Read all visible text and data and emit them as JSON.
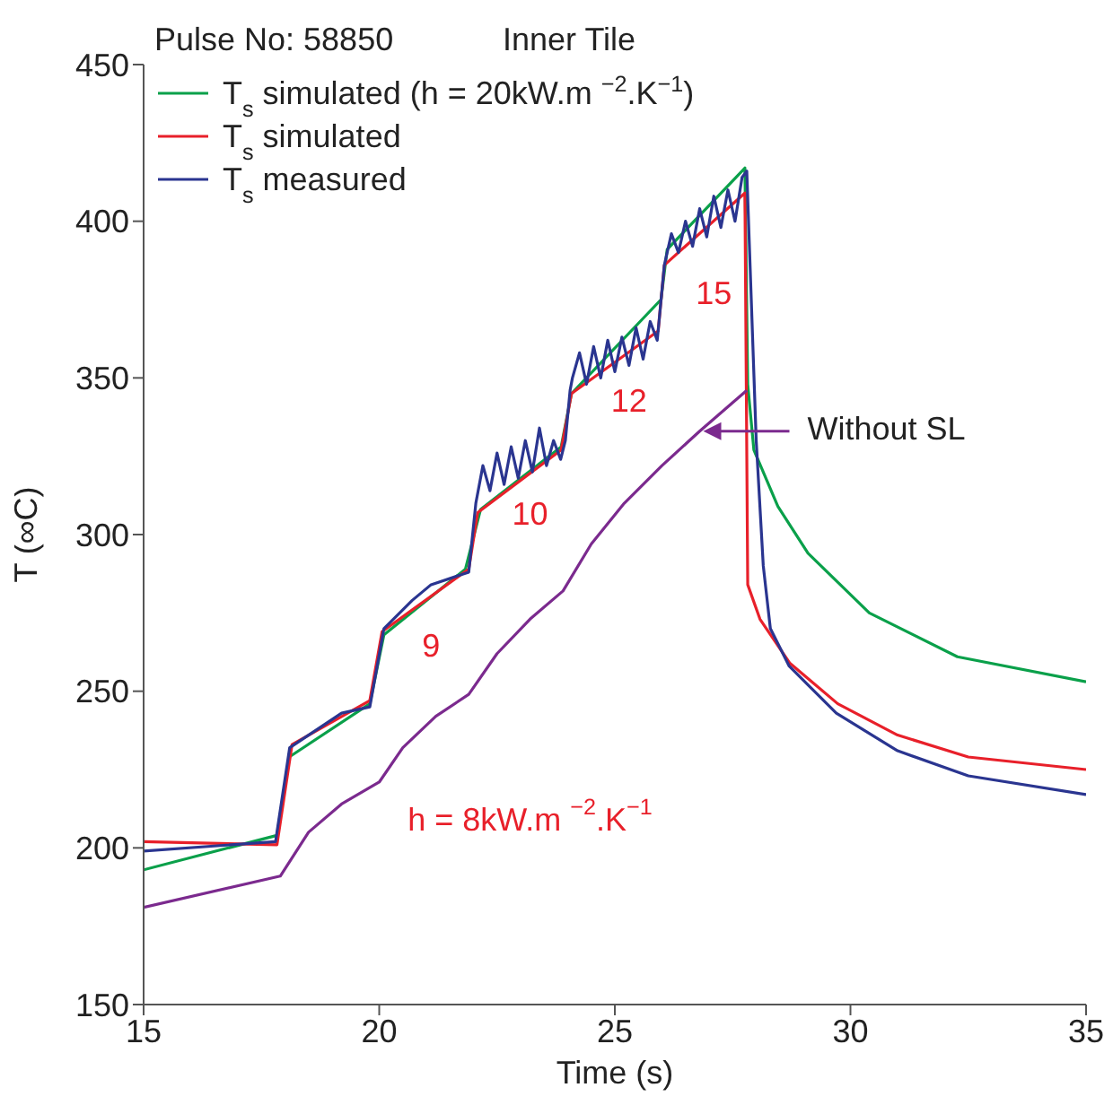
{
  "chart_data": {
    "type": "line",
    "title": "Pulse No: 58850",
    "subtitle": "Inner Tile",
    "xlabel": "Time (s)",
    "ylabel": "T (∞C)",
    "xlim": [
      15,
      35
    ],
    "xticks": [
      15,
      20,
      25,
      30,
      35
    ],
    "ylim": [
      150,
      450
    ],
    "yticks": [
      150,
      200,
      250,
      300,
      350,
      400,
      450
    ],
    "grid": false,
    "legend": "top left",
    "marker": "none",
    "line_style": "solid",
    "series": [
      {
        "name": "T$_{s}$ simulated (h = 20kW.m $^{−2}$.K$^{−1}$)",
        "color": "#0aa04a",
        "x": [
          15,
          17.83,
          18.09,
          19.8,
          20.1,
          21.83,
          22.15,
          23.86,
          24.08,
          25.98,
          26.11,
          27.76,
          27.82,
          27.95,
          28.46,
          29.1,
          30.4,
          32.27,
          35
        ],
        "values": [
          193,
          204,
          229,
          246,
          268,
          289,
          308,
          328,
          345,
          375,
          391,
          417,
          348,
          327,
          309,
          294,
          275,
          261,
          253
        ]
      },
      {
        "name": "T$_{s}$ simulated",
        "color": "#e8202a",
        "x": [
          15,
          17.83,
          18.15,
          19.8,
          20.06,
          21.9,
          22.09,
          23.86,
          24.08,
          25.92,
          26.05,
          27.76,
          27.82,
          28.08,
          28.71,
          29.73,
          31,
          32.5,
          35
        ],
        "values": [
          202,
          201,
          233,
          247,
          269,
          289,
          307,
          327,
          345,
          365,
          386,
          409,
          284,
          273,
          259,
          246,
          236,
          229,
          225
        ]
      },
      {
        "name": "T$_{s}$ measured",
        "color": "#2a3590",
        "x": [
          15,
          17.8,
          18.1,
          19.2,
          19.8,
          20.1,
          20.7,
          21.1,
          21.9,
          22.05,
          22.2,
          22.35,
          22.5,
          22.65,
          22.8,
          22.95,
          23.1,
          23.25,
          23.4,
          23.55,
          23.7,
          23.85,
          23.95,
          24.05,
          24.1,
          24.25,
          24.4,
          24.55,
          24.7,
          24.85,
          25,
          25.15,
          25.3,
          25.45,
          25.6,
          25.75,
          25.9,
          26.05,
          26.2,
          26.35,
          26.5,
          26.65,
          26.8,
          26.95,
          27.1,
          27.25,
          27.4,
          27.55,
          27.7,
          27.8,
          28,
          28.15,
          28.3,
          28.7,
          29.7,
          31,
          32.5,
          35
        ],
        "values": [
          199,
          202,
          232,
          243,
          245,
          270,
          279,
          284,
          288,
          310,
          322,
          314,
          326,
          316,
          328,
          318,
          330,
          320,
          334,
          322,
          330,
          324,
          330,
          346,
          350,
          358,
          348,
          360,
          350,
          362,
          352,
          363,
          354,
          366,
          356,
          368,
          362,
          386,
          396,
          390,
          400,
          392,
          404,
          395,
          408,
          398,
          410,
          400,
          414,
          416,
          330,
          290,
          270,
          258,
          243,
          231,
          223,
          217
        ]
      },
      {
        "name": "Without SL",
        "color": "#7b2a8e",
        "x": [
          15,
          17.9,
          18.5,
          19.2,
          20,
          20.5,
          21.2,
          21.9,
          22.5,
          23.2,
          23.9,
          24.5,
          25.2,
          26,
          26.8,
          27.8
        ],
        "values": [
          181,
          191,
          205,
          214,
          221,
          232,
          242,
          249,
          262,
          273,
          282,
          297,
          310,
          322,
          333,
          346
        ]
      }
    ],
    "annotations": [
      "9",
      "10",
      "12",
      "15",
      "h = 8kW.m $^{−2}$.K$^{−1}$"
    ]
  }
}
